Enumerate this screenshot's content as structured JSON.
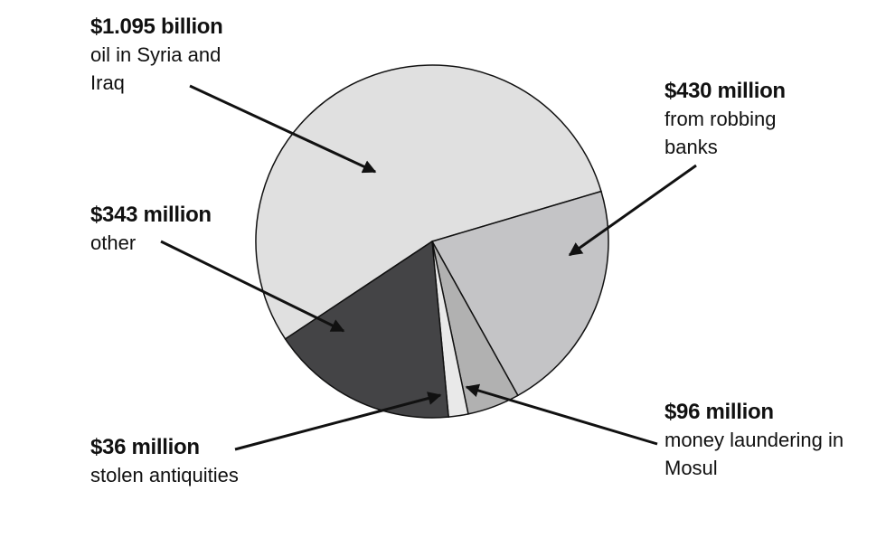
{
  "chart_data": {
    "type": "pie",
    "categories": [
      "oil in Syria and Iraq",
      "from robbing banks",
      "money laundering in Mosul",
      "stolen antiquities",
      "other"
    ],
    "values": [
      1095000000,
      430000000,
      96000000,
      36000000,
      343000000
    ],
    "value_labels": [
      "$1.095 billion",
      "$430 million",
      "$96 million",
      "$36 million",
      "$343 million"
    ],
    "colors": [
      "#e0e0e0",
      "#c4c4c6",
      "#b1b1b1",
      "#e9e9e9",
      "#444446"
    ]
  }
}
